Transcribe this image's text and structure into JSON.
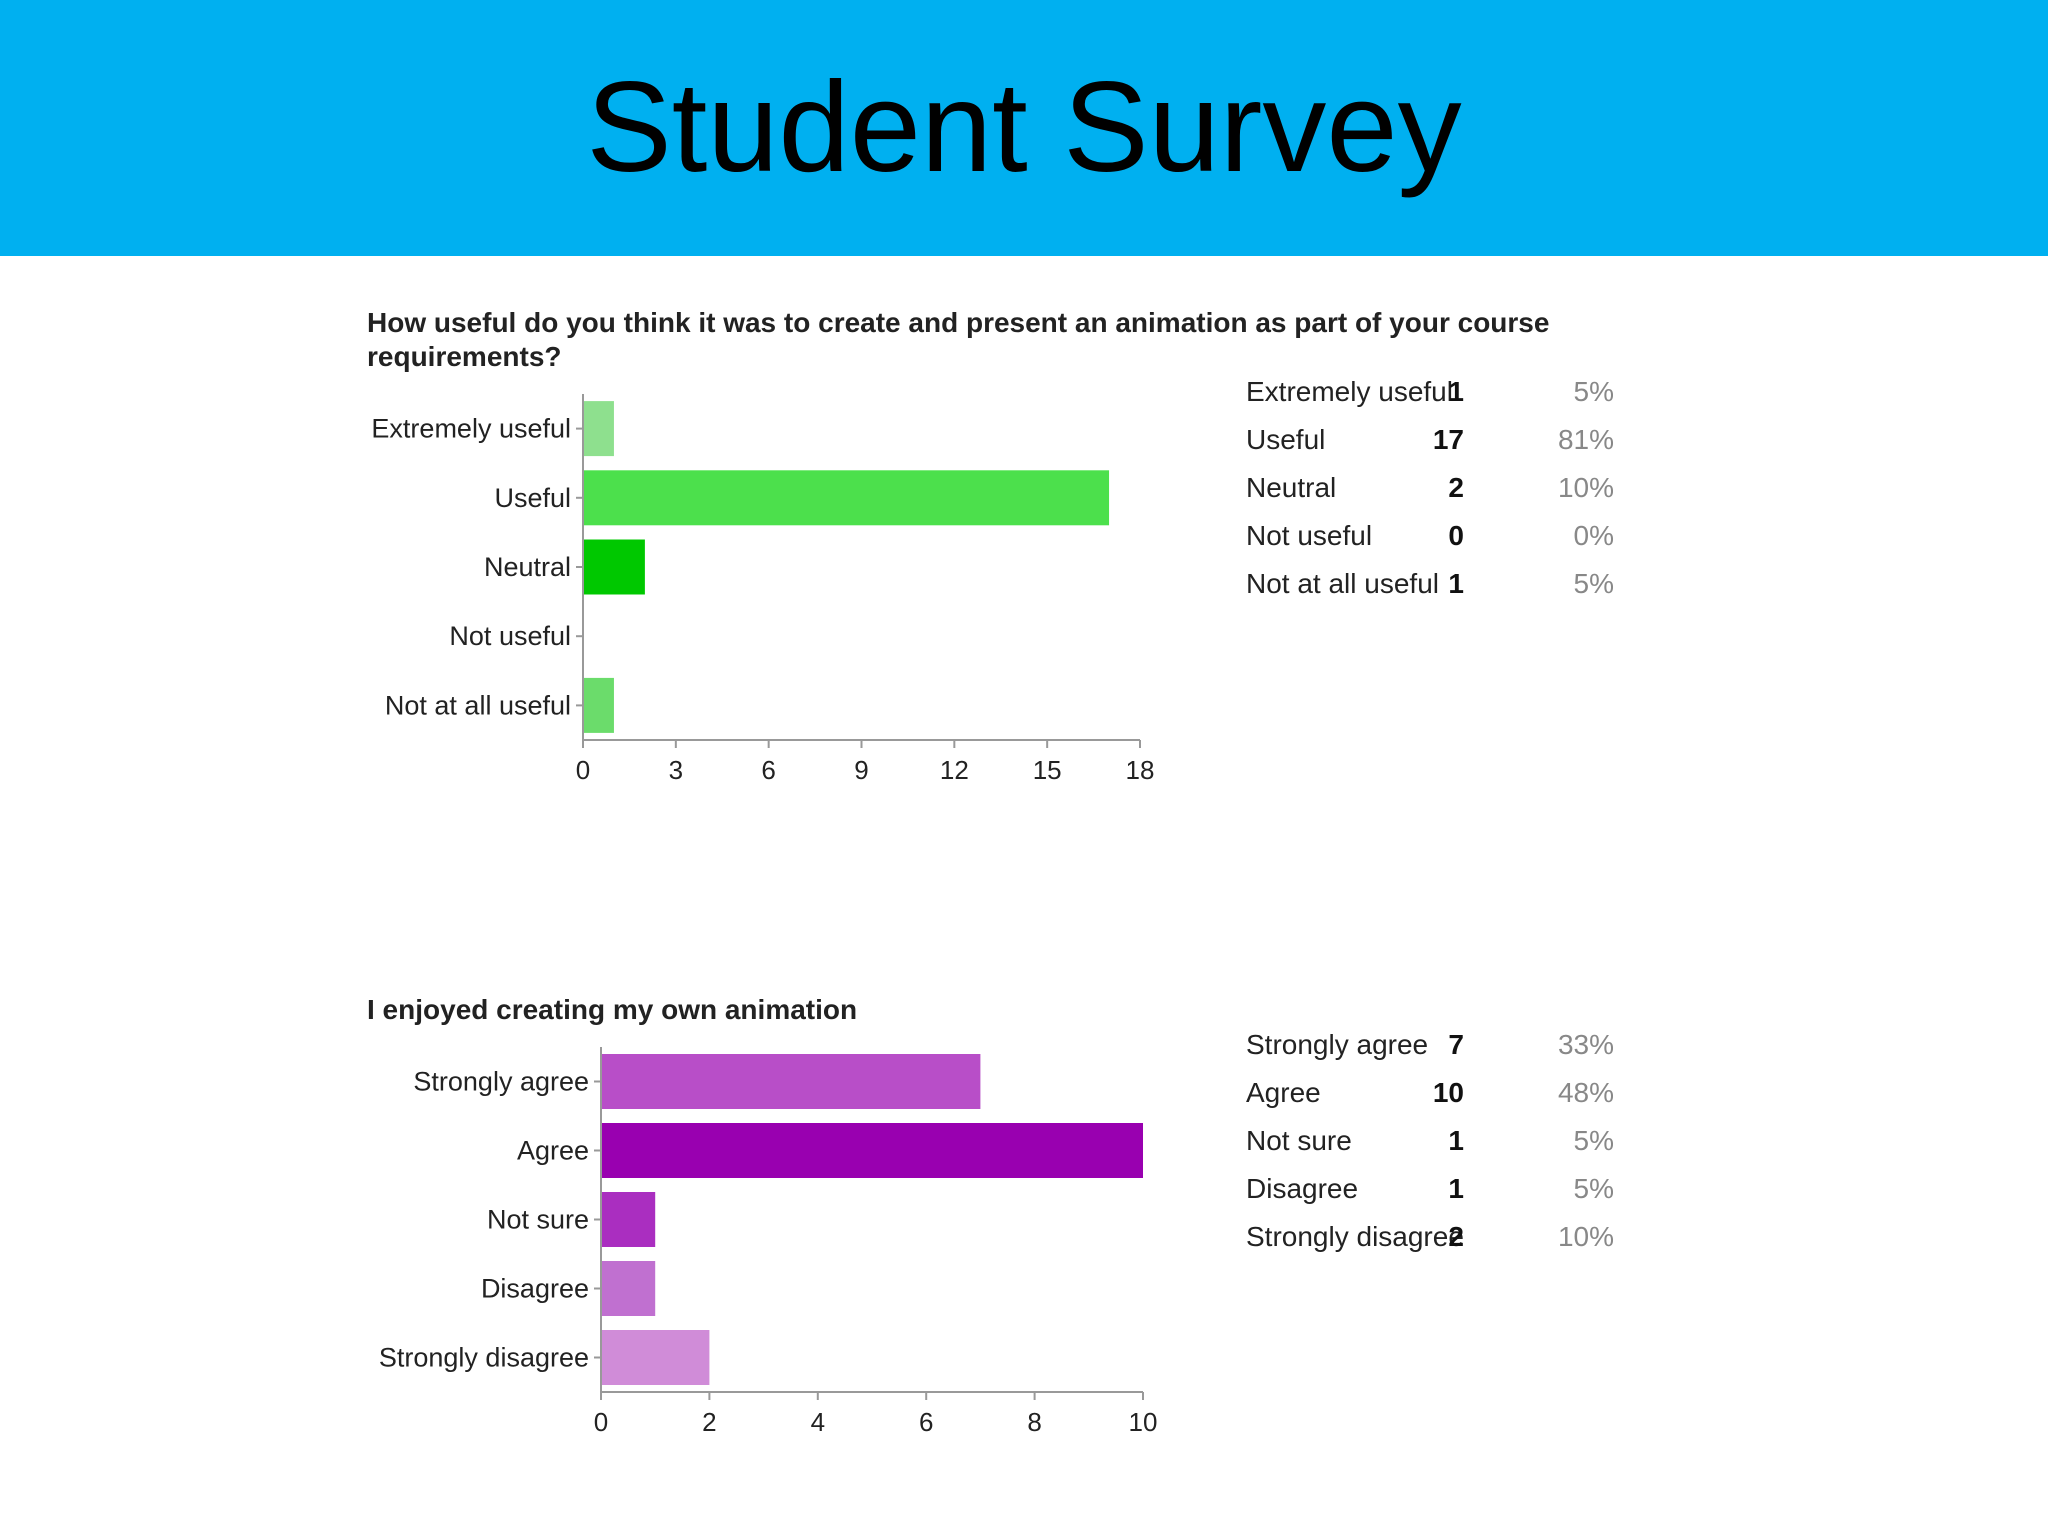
{
  "header": {
    "title": "Student Survey",
    "background": "#00b0f0"
  },
  "charts": [
    {
      "question": "How useful do you think it was to create and present an animation as part of your course requirements?",
      "chart_data": {
        "type": "bar",
        "orientation": "horizontal",
        "categories": [
          "Extremely useful",
          "Useful",
          "Neutral",
          "Not useful",
          "Not at all useful"
        ],
        "values": [
          1,
          17,
          2,
          0,
          1
        ],
        "colors": [
          "#8ee08e",
          "#4ce04c",
          "#00c800",
          "#66dd66",
          "#6bdc6b"
        ],
        "xticks": [
          "0",
          "3",
          "6",
          "9",
          "12",
          "15",
          "18"
        ],
        "xlim": [
          0,
          18
        ],
        "grid": false
      },
      "summary": [
        {
          "label": "Extremely useful",
          "count": "1",
          "percent": "5%"
        },
        {
          "label": "Useful",
          "count": "17",
          "percent": "81%"
        },
        {
          "label": "Neutral",
          "count": "2",
          "percent": "10%"
        },
        {
          "label": "Not useful",
          "count": "0",
          "percent": "0%"
        },
        {
          "label": "Not at all useful",
          "count": "1",
          "percent": "5%"
        }
      ]
    },
    {
      "question": "I enjoyed creating my own animation",
      "chart_data": {
        "type": "bar",
        "orientation": "horizontal",
        "categories": [
          "Strongly agree",
          "Agree",
          "Not sure",
          "Disagree",
          "Strongly disagree"
        ],
        "values": [
          7,
          10,
          1,
          1,
          2
        ],
        "colors": [
          "#b84ec8",
          "#9900b0",
          "#aa2ec0",
          "#c070d0",
          "#d08cd8"
        ],
        "xticks": [
          "0",
          "2",
          "4",
          "6",
          "8",
          "10"
        ],
        "xlim": [
          0,
          10
        ],
        "grid": false
      },
      "summary": [
        {
          "label": "Strongly agree",
          "count": "7",
          "percent": "33%"
        },
        {
          "label": "Agree",
          "count": "10",
          "percent": "48%"
        },
        {
          "label": "Not sure",
          "count": "1",
          "percent": "5%"
        },
        {
          "label": "Disagree",
          "count": "1",
          "percent": "5%"
        },
        {
          "label": "Strongly disagree",
          "count": "2",
          "percent": "10%"
        }
      ]
    }
  ]
}
